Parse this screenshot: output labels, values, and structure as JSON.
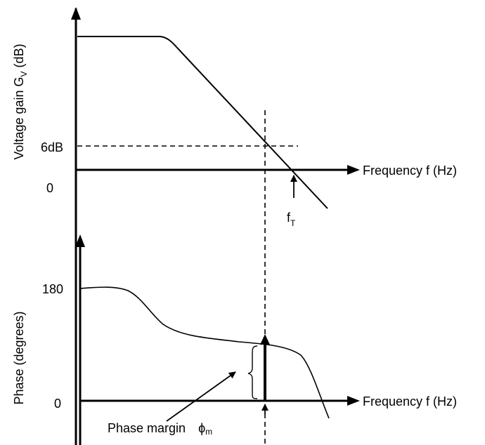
{
  "gain_plot": {
    "ylabel": "Voltage gain",
    "ylabel_symbol": "G",
    "ylabel_symbol_sub": "V",
    "ylabel_unit": "(dB)",
    "tick_6db": "6dB",
    "tick_0": "0",
    "xlabel": "Frequency f (Hz)",
    "ft_main": "f",
    "ft_sub": "T"
  },
  "phase_plot": {
    "ylabel": "Phase (degrees)",
    "tick_180": "180",
    "tick_0": "0",
    "xlabel": "Frequency f (Hz)",
    "margin_label": "Phase margin",
    "margin_symbol": "ϕ",
    "margin_symbol_sub": "m"
  },
  "colors": {
    "stroke": "#000000",
    "background": "#ffffff"
  }
}
